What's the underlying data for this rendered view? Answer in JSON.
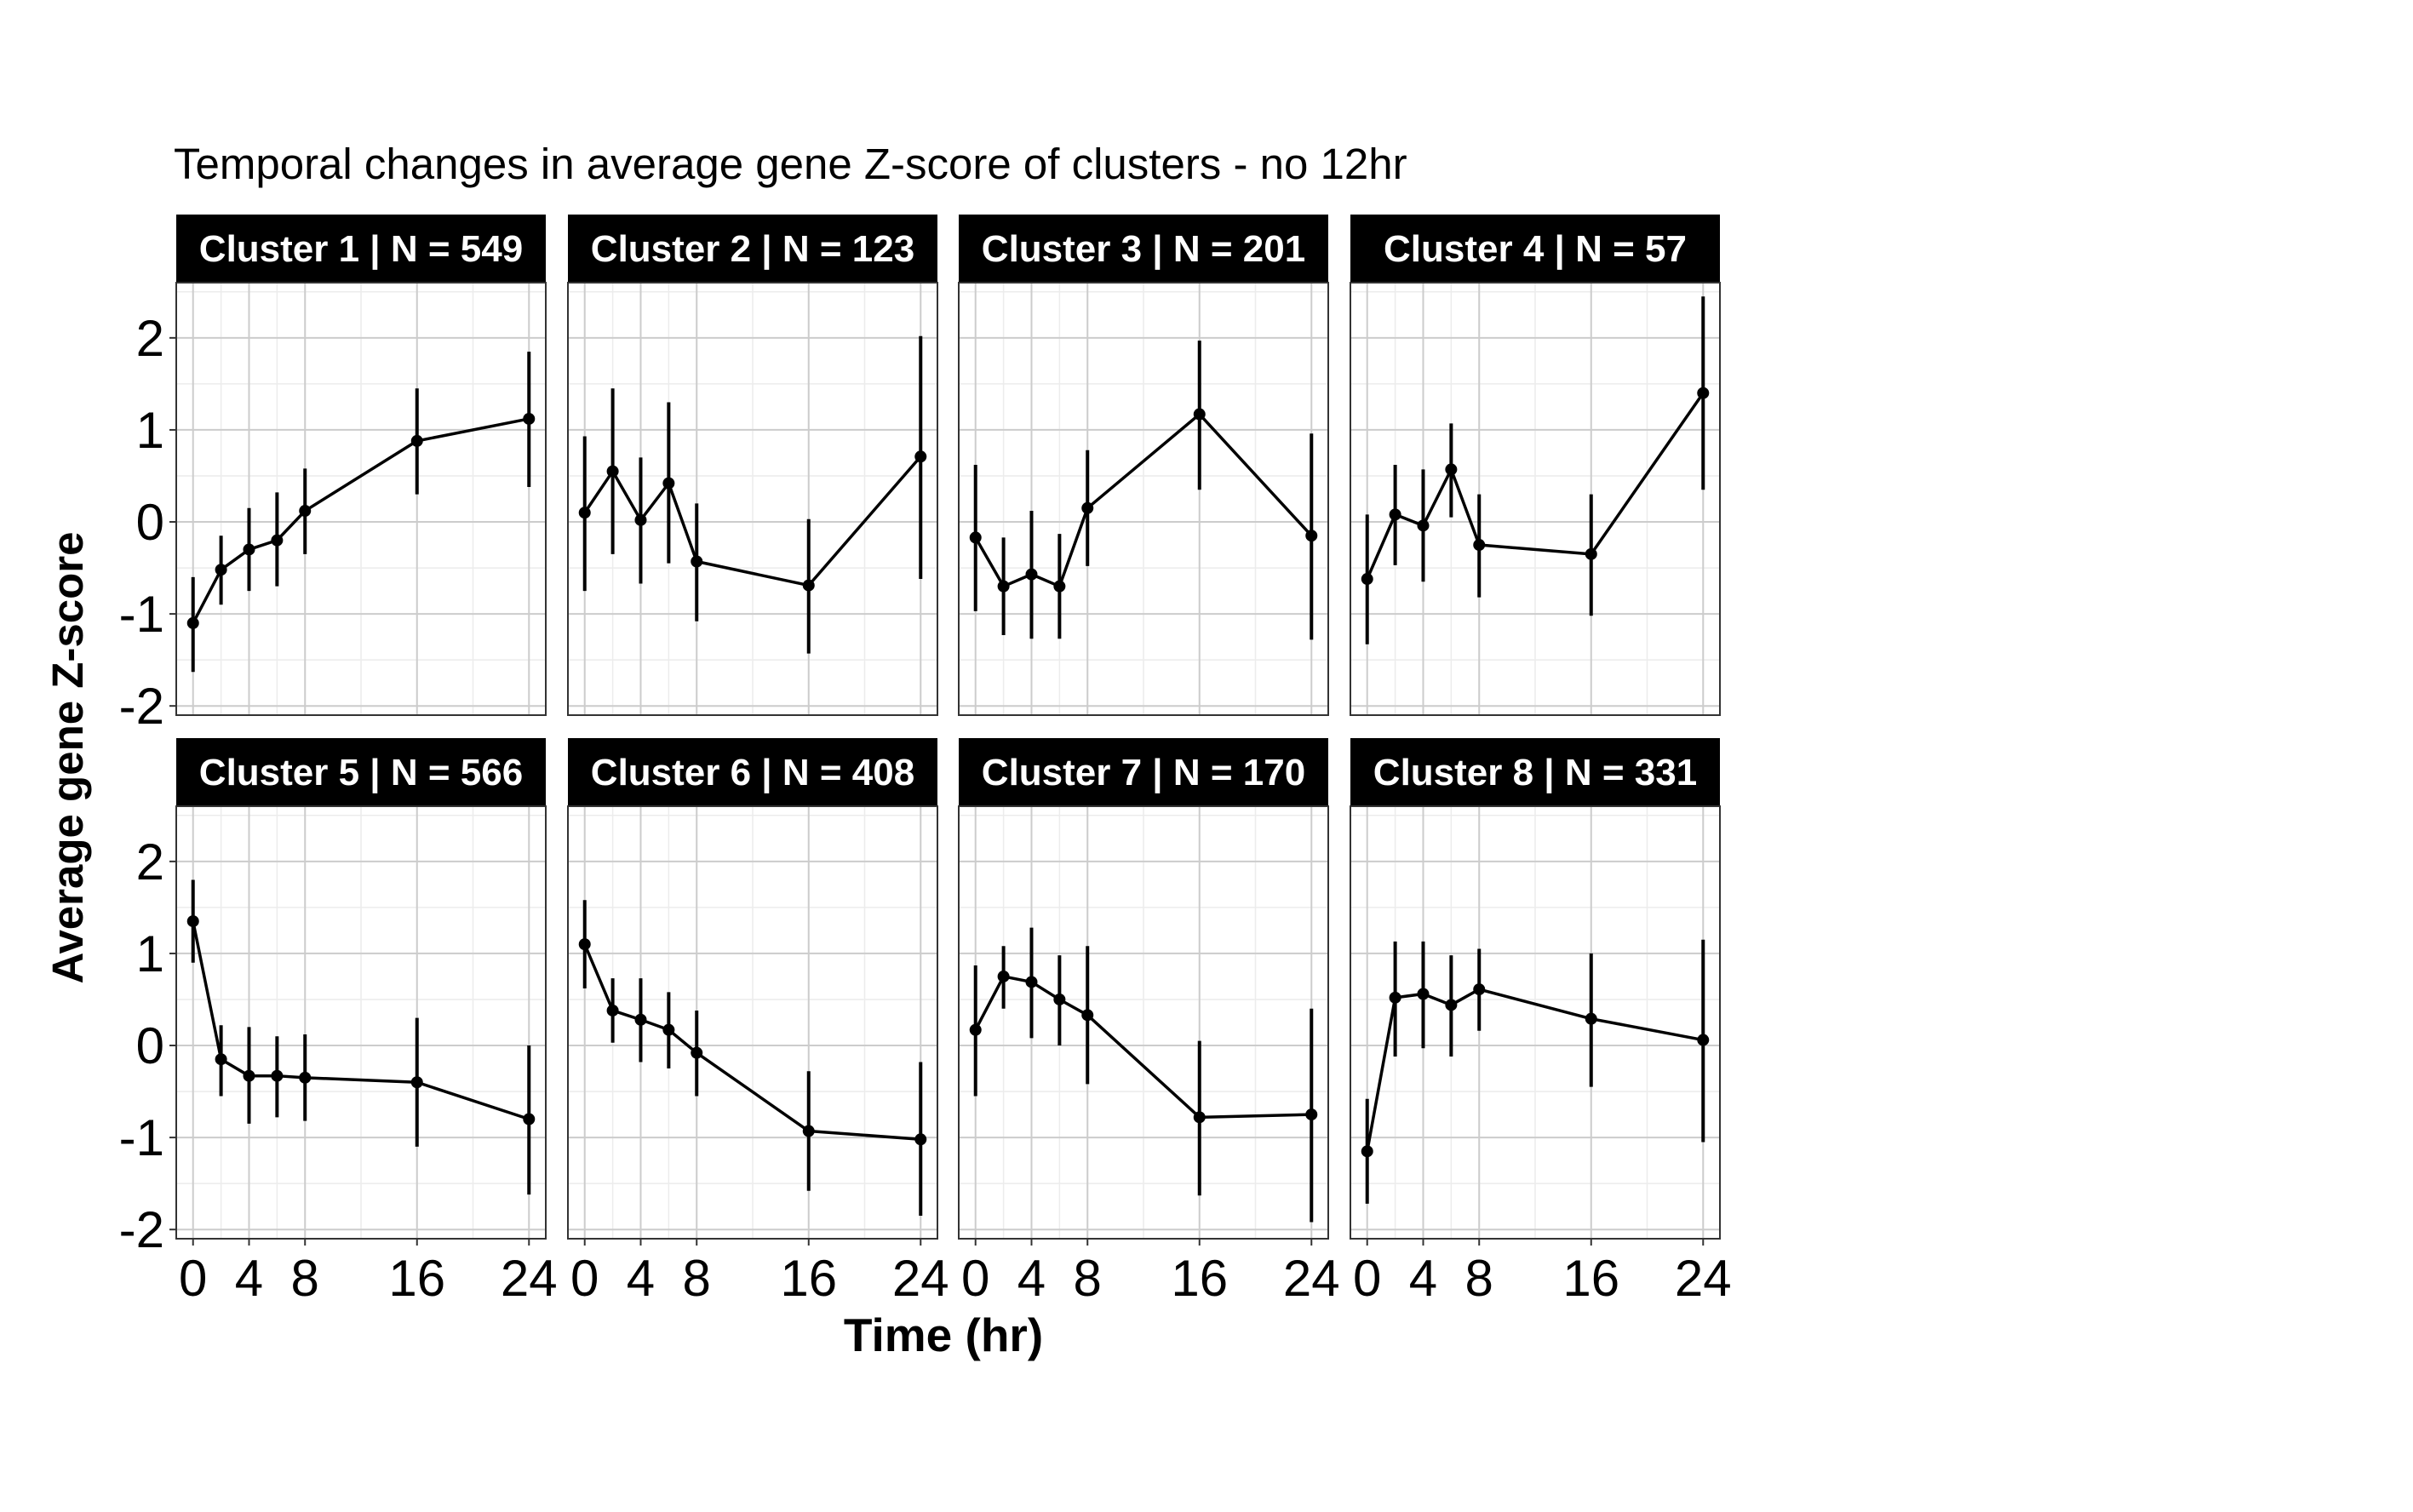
{
  "chart_data": {
    "type": "line",
    "title": "Temporal changes in average gene Z-score of clusters - no 12hr",
    "xlabel": "Time (hr)",
    "ylabel": "Average gene Z-score",
    "x": [
      0,
      2,
      4,
      6,
      8,
      16,
      24
    ],
    "xticks": [
      0,
      4,
      8,
      16,
      24
    ],
    "xtick_labels": [
      "0",
      "4",
      "8",
      "16",
      "24"
    ],
    "xlim": [
      -1.2,
      25.2
    ],
    "yticks": [
      -2,
      -1,
      0,
      1,
      2
    ],
    "ytick_labels": [
      "-2",
      "-1",
      "0",
      "1",
      "2"
    ],
    "ylim": [
      -2.1,
      2.6
    ],
    "grid": true,
    "layout": "facets 2 rows x 4 columns",
    "colors": {
      "line": "#000000",
      "strip_background": "#000000",
      "strip_text": "#ffffff",
      "grid_major": "#cccccc",
      "grid_minor": "#ececec",
      "panel_border": "#333333"
    },
    "panels": [
      {
        "label": "Cluster 1 | N = 549",
        "y": [
          -1.1,
          -0.52,
          -0.3,
          -0.2,
          0.12,
          0.88,
          1.12
        ],
        "lower": [
          -1.63,
          -0.9,
          -0.75,
          -0.7,
          -0.35,
          0.3,
          0.38
        ],
        "upper": [
          -0.6,
          -0.15,
          0.15,
          0.32,
          0.58,
          1.45,
          1.85
        ]
      },
      {
        "label": "Cluster 2 | N = 123",
        "y": [
          0.1,
          0.55,
          0.02,
          0.42,
          -0.43,
          -0.69,
          0.71
        ],
        "lower": [
          -0.75,
          -0.35,
          -0.67,
          -0.45,
          -1.08,
          -1.43,
          -0.62
        ],
        "upper": [
          0.93,
          1.45,
          0.7,
          1.3,
          0.2,
          0.03,
          2.02
        ]
      },
      {
        "label": "Cluster 3 | N = 201",
        "y": [
          -0.17,
          -0.7,
          -0.57,
          -0.7,
          0.15,
          1.17,
          -0.15
        ],
        "lower": [
          -0.97,
          -1.23,
          -1.27,
          -1.27,
          -0.48,
          0.35,
          -1.28
        ],
        "upper": [
          0.62,
          -0.17,
          0.12,
          -0.13,
          0.78,
          1.97,
          0.96
        ]
      },
      {
        "label": "Cluster 4 | N = 57",
        "y": [
          -0.62,
          0.08,
          -0.04,
          0.57,
          -0.25,
          -0.35,
          1.4
        ],
        "lower": [
          -1.33,
          -0.47,
          -0.65,
          0.05,
          -0.82,
          -1.02,
          0.35
        ],
        "upper": [
          0.08,
          0.62,
          0.57,
          1.07,
          0.3,
          0.3,
          2.45
        ]
      },
      {
        "label": "Cluster 5 | N = 566",
        "y": [
          1.35,
          -0.15,
          -0.33,
          -0.33,
          -0.35,
          -0.4,
          -0.8
        ],
        "lower": [
          0.9,
          -0.55,
          -0.85,
          -0.78,
          -0.82,
          -1.1,
          -1.62
        ],
        "upper": [
          1.8,
          0.22,
          0.2,
          0.1,
          0.12,
          0.3,
          0.0
        ]
      },
      {
        "label": "Cluster 6 | N = 408",
        "y": [
          1.1,
          0.38,
          0.28,
          0.17,
          -0.08,
          -0.93,
          -1.02
        ],
        "lower": [
          0.62,
          0.03,
          -0.18,
          -0.25,
          -0.55,
          -1.58,
          -1.85
        ],
        "upper": [
          1.58,
          0.73,
          0.73,
          0.58,
          0.38,
          -0.28,
          -0.18
        ]
      },
      {
        "label": "Cluster 7 | N = 170",
        "y": [
          0.17,
          0.75,
          0.69,
          0.5,
          0.33,
          -0.78,
          -0.75
        ],
        "lower": [
          -0.55,
          0.4,
          0.08,
          0.0,
          -0.42,
          -1.63,
          -1.92
        ],
        "upper": [
          0.87,
          1.08,
          1.28,
          0.98,
          1.08,
          0.05,
          0.4
        ]
      },
      {
        "label": "Cluster 8 | N = 331",
        "y": [
          -1.15,
          0.52,
          0.56,
          0.44,
          0.61,
          0.29,
          0.06
        ],
        "lower": [
          -1.72,
          -0.12,
          -0.03,
          -0.12,
          0.16,
          -0.45,
          -1.05
        ],
        "upper": [
          -0.58,
          1.13,
          1.13,
          0.98,
          1.05,
          1.0,
          1.15
        ]
      }
    ]
  }
}
